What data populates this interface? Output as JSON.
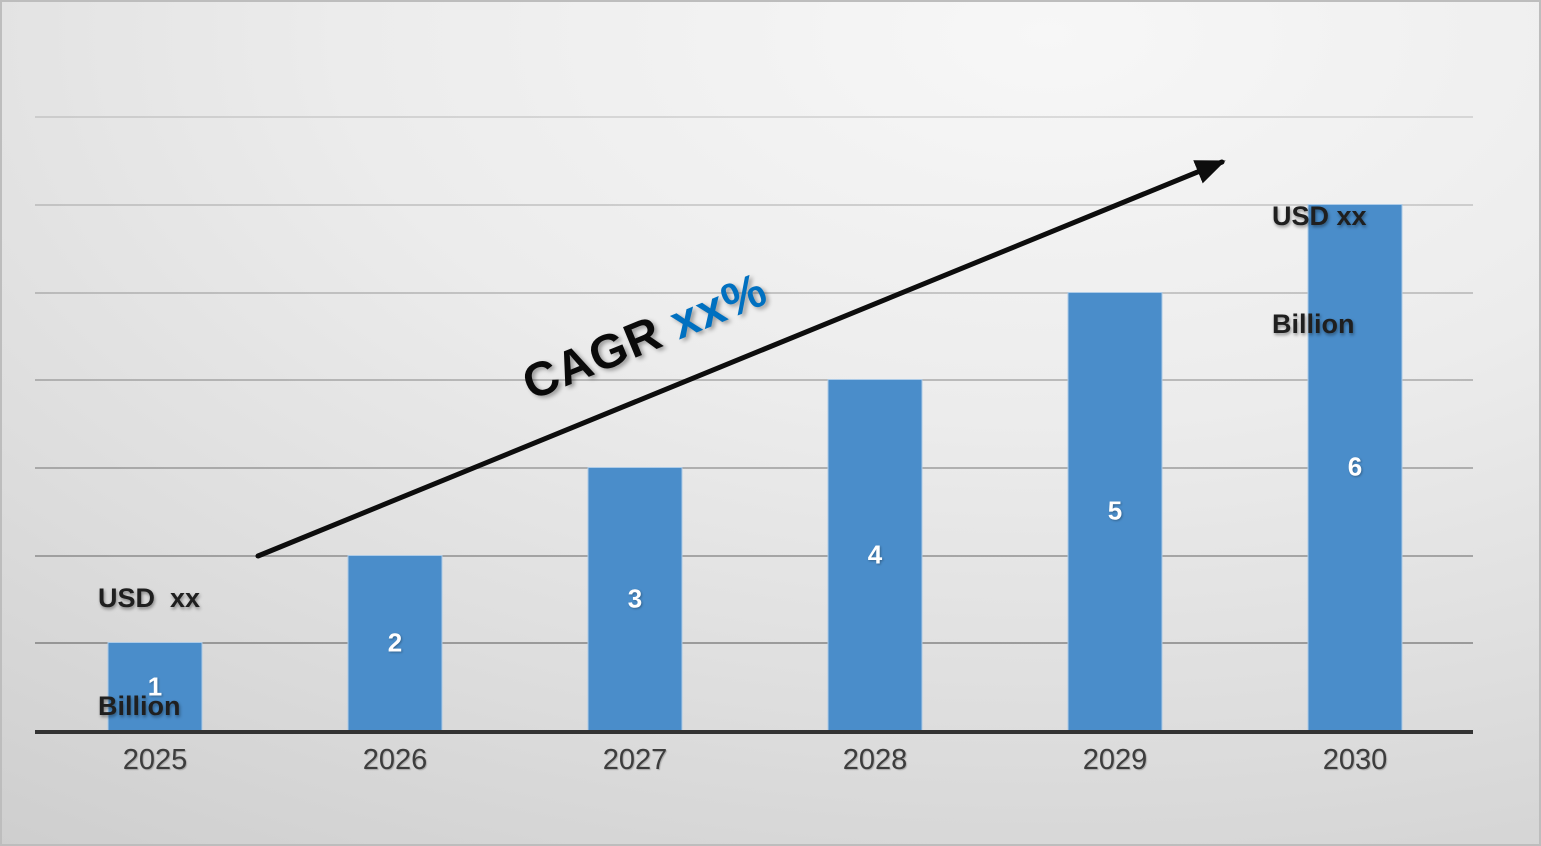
{
  "chart_data": {
    "type": "bar",
    "categories": [
      "2025",
      "2026",
      "2027",
      "2028",
      "2029",
      "2030"
    ],
    "values": [
      1,
      2,
      3,
      4,
      5,
      6
    ],
    "title": "",
    "xlabel": "",
    "ylabel": "",
    "ylim": [
      0,
      7
    ],
    "grid": "horizontal",
    "legend": "none",
    "bar_color": "#4A8DCA",
    "bar_label_color": "#FFFFFF",
    "axis_label_color": "#3D3D3D",
    "axis_line_color": "#333333"
  },
  "annotations": {
    "left_value": {
      "line1": "USD  xx",
      "line2": "Billion"
    },
    "right_value": {
      "line1": "USD xx",
      "line2": "Billion"
    },
    "cagr": {
      "label": "CAGR ",
      "value": "xx%",
      "value_color": "#0070C0"
    },
    "arrow_color": "#0D0D0D"
  }
}
